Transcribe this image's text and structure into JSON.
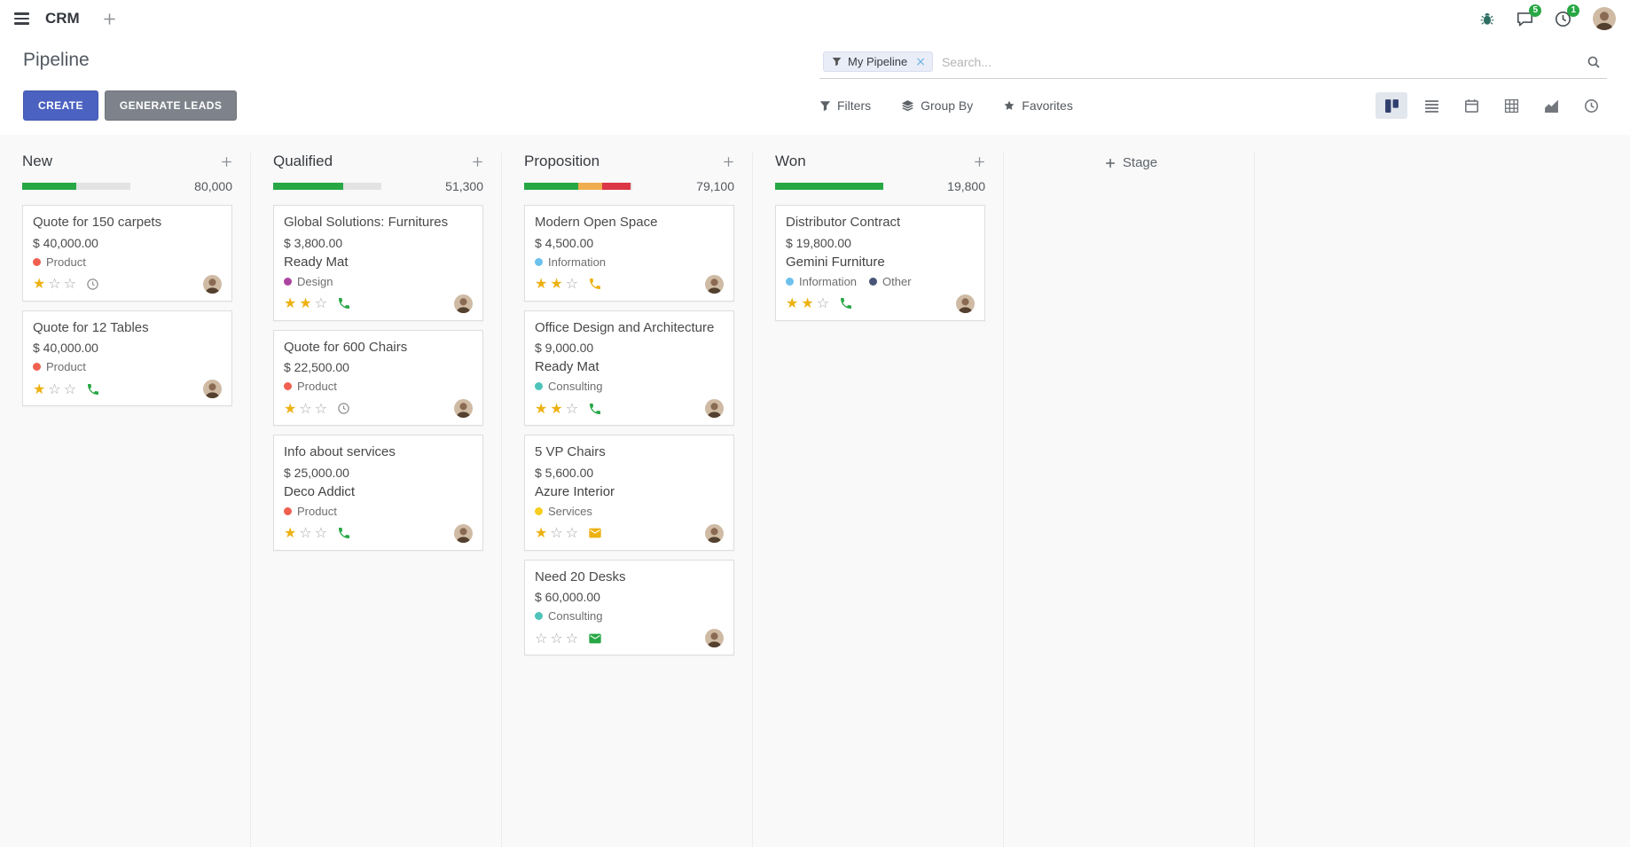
{
  "navbar": {
    "app_name": "CRM",
    "messages_badge": "5",
    "activities_badge": "1"
  },
  "control_panel": {
    "title": "Pipeline",
    "create_label": "CREATE",
    "generate_leads_label": "GENERATE LEADS",
    "facet_label": "My Pipeline",
    "search_placeholder": "Search...",
    "filters_label": "Filters",
    "group_by_label": "Group By",
    "favorites_label": "Favorites",
    "view_switcher_active": "kanban"
  },
  "icons": {
    "star_filled": "★",
    "star_empty": "☆",
    "facet_close": "×"
  },
  "colors": {
    "primary_button": "#4b62c1",
    "progress_green": "#28a745",
    "progress_yellow": "#f0ad4e",
    "progress_red": "#dc3545"
  },
  "kanban": {
    "add_stage_label": "Stage",
    "columns": [
      {
        "name": "New",
        "count": "80,000",
        "progress": [
          {
            "color": "#28a745",
            "pct": 50
          }
        ],
        "cards": [
          {
            "title": "Quote for 150 carpets",
            "amount": "$ 40,000.00",
            "partner": "",
            "tags": [
              {
                "label": "Product",
                "color": "#f06050"
              }
            ],
            "stars": 1,
            "activity": "clock",
            "activity_color": "#919191"
          },
          {
            "title": "Quote for 12 Tables",
            "amount": "$ 40,000.00",
            "partner": "",
            "tags": [
              {
                "label": "Product",
                "color": "#f06050"
              }
            ],
            "stars": 1,
            "activity": "phone",
            "activity_color": "#28a745"
          }
        ]
      },
      {
        "name": "Qualified",
        "count": "51,300",
        "progress": [
          {
            "color": "#28a745",
            "pct": 65
          }
        ],
        "cards": [
          {
            "title": "Global Solutions: Furnitures",
            "amount": "$ 3,800.00",
            "partner": "Ready Mat",
            "tags": [
              {
                "label": "Design",
                "color": "#ab44a0"
              }
            ],
            "stars": 2,
            "activity": "phone",
            "activity_color": "#28a745"
          },
          {
            "title": "Quote for 600 Chairs",
            "amount": "$ 22,500.00",
            "partner": "",
            "tags": [
              {
                "label": "Product",
                "color": "#f06050"
              }
            ],
            "stars": 1,
            "activity": "clock",
            "activity_color": "#919191"
          },
          {
            "title": "Info about services",
            "amount": "$ 25,000.00",
            "partner": "Deco Addict",
            "tags": [
              {
                "label": "Product",
                "color": "#f06050"
              }
            ],
            "stars": 1,
            "activity": "phone",
            "activity_color": "#28a745"
          }
        ]
      },
      {
        "name": "Proposition",
        "count": "79,100",
        "progress": [
          {
            "color": "#28a745",
            "pct": 50
          },
          {
            "color": "#f0ad4e",
            "pct": 22
          },
          {
            "color": "#dc3545",
            "pct": 26
          }
        ],
        "cards": [
          {
            "title": "Modern Open Space",
            "amount": "$ 4,500.00",
            "partner": "",
            "tags": [
              {
                "label": "Information",
                "color": "#6cc1ed"
              }
            ],
            "stars": 2,
            "activity": "phone",
            "activity_color": "#edb112"
          },
          {
            "title": "Office Design and Architecture",
            "amount": "$ 9,000.00",
            "partner": "Ready Mat",
            "tags": [
              {
                "label": "Consulting",
                "color": "#4dc3ba"
              }
            ],
            "stars": 2,
            "activity": "phone",
            "activity_color": "#28a745"
          },
          {
            "title": "5 VP Chairs",
            "amount": "$ 5,600.00",
            "partner": "Azure Interior",
            "tags": [
              {
                "label": "Services",
                "color": "#f7cd1f"
              }
            ],
            "stars": 1,
            "activity": "envelope",
            "activity_color": "#edb112"
          },
          {
            "title": "Need 20 Desks",
            "amount": "$ 60,000.00",
            "partner": "",
            "tags": [
              {
                "label": "Consulting",
                "color": "#4dc3ba"
              }
            ],
            "stars": 0,
            "activity": "envelope",
            "activity_color": "#28a745"
          }
        ]
      },
      {
        "name": "Won",
        "count": "19,800",
        "progress": [
          {
            "color": "#28a745",
            "pct": 100
          }
        ],
        "cards": [
          {
            "title": "Distributor Contract",
            "amount": "$ 19,800.00",
            "partner": "Gemini Furniture",
            "tags": [
              {
                "label": "Information",
                "color": "#6cc1ed"
              },
              {
                "label": "Other",
                "color": "#475577"
              }
            ],
            "stars": 2,
            "activity": "phone",
            "activity_color": "#28a745"
          }
        ]
      }
    ]
  }
}
